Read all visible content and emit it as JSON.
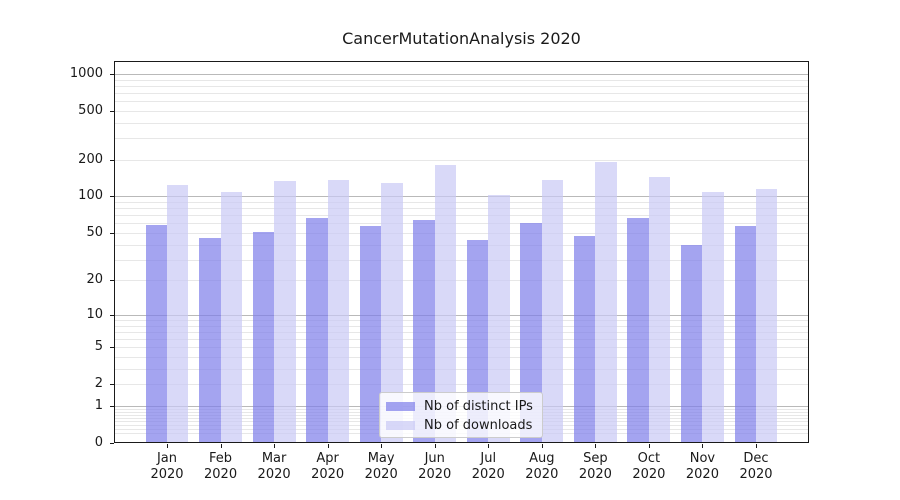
{
  "chart_data": {
    "type": "bar",
    "title": "CancerMutationAnalysis 2020",
    "categories": [
      "Jan 2020",
      "Feb 2020",
      "Mar 2020",
      "Apr 2020",
      "May 2020",
      "Jun 2020",
      "Jul 2020",
      "Aug 2020",
      "Sep 2020",
      "Oct 2020",
      "Nov 2020",
      "Dec 2020"
    ],
    "series": [
      {
        "name": "Nb of distinct IPs",
        "color": "#7d7dea",
        "alpha": 0.7,
        "values": [
          58,
          45,
          51,
          66,
          57,
          64,
          44,
          60,
          47,
          67,
          40,
          57
        ]
      },
      {
        "name": "Nb of downloads",
        "color": "#c9c9f5",
        "alpha": 0.7,
        "values": [
          125,
          108,
          134,
          136,
          130,
          180,
          102,
          137,
          190,
          145,
          108,
          115
        ]
      }
    ],
    "yscale": "log1p",
    "yticks": [
      0,
      1,
      2,
      5,
      10,
      20,
      50,
      100,
      200,
      500,
      1000
    ],
    "ylim": [
      0,
      1275
    ],
    "xlabel": "",
    "ylabel": "",
    "grid": "both",
    "legend_position": "lower center",
    "colors": {
      "major_grid": "#b9b9b9",
      "minor_grid": "#e7e7e7",
      "spine": "#1a1a1a",
      "text": "#1a1a1a",
      "background": "#ffffff"
    }
  }
}
